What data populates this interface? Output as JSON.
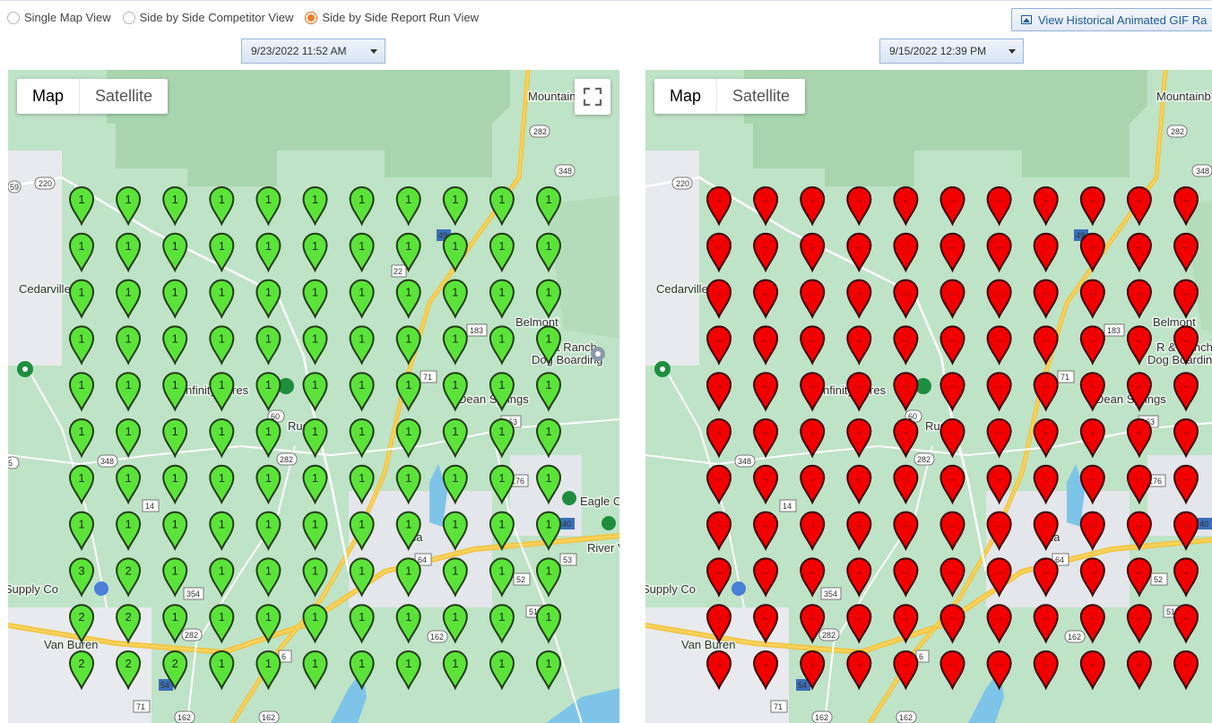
{
  "view_options": [
    {
      "label": "Single Map View",
      "checked": false
    },
    {
      "label": "Side by Side Competitor View",
      "checked": false
    },
    {
      "label": "Side by Side Report Run View",
      "checked": true
    }
  ],
  "gif_button": {
    "label": "View Historical Animated GIF Ra",
    "icon": "image-icon"
  },
  "left_panel": {
    "date": "9/23/2022 11:52 AM",
    "map_type": {
      "map": "Map",
      "satellite": "Satellite",
      "selected": "Map"
    },
    "pin_color": "#5ce33a",
    "pin_stroke": "#1f3d12",
    "pin_rows": [
      [
        "1",
        "1",
        "1",
        "1",
        "1",
        "1",
        "1",
        "1",
        "1",
        "1",
        "1"
      ],
      [
        "1",
        "1",
        "1",
        "1",
        "1",
        "1",
        "1",
        "1",
        "1",
        "1",
        "1"
      ],
      [
        "1",
        "1",
        "1",
        "1",
        "1",
        "1",
        "1",
        "1",
        "1",
        "1",
        "1"
      ],
      [
        "1",
        "1",
        "1",
        "1",
        "1",
        "1",
        "1",
        "1",
        "1",
        "1",
        "1"
      ],
      [
        "1",
        "1",
        "1",
        "1",
        "1",
        "1",
        "1",
        "1",
        "1",
        "1",
        "1"
      ],
      [
        "1",
        "1",
        "1",
        "1",
        "1",
        "1",
        "1",
        "1",
        "1",
        "1",
        "1"
      ],
      [
        "1",
        "1",
        "1",
        "1",
        "1",
        "1",
        "1",
        "1",
        "1",
        "1",
        "1"
      ],
      [
        "1",
        "1",
        "1",
        "1",
        "1",
        "1",
        "1",
        "1",
        "1",
        "1",
        "1"
      ],
      [
        "3",
        "2",
        "1",
        "1",
        "1",
        "1",
        "1",
        "1",
        "1",
        "1",
        "1"
      ],
      [
        "2",
        "2",
        "1",
        "1",
        "1",
        "1",
        "1",
        "1",
        "1",
        "1",
        "1"
      ],
      [
        "2",
        "2",
        "2",
        "1",
        "1",
        "1",
        "1",
        "1",
        "1",
        "1",
        "1"
      ]
    ]
  },
  "right_panel": {
    "date": "9/15/2022 12:39 PM",
    "map_type": {
      "map": "Map",
      "satellite": "Satellite",
      "selected": "Map"
    },
    "pin_color": "#f20000",
    "pin_stroke": "#3a0000",
    "pin_label": "–",
    "pin_rows_count": 11,
    "pin_cols_count": 11
  },
  "map_labels": {
    "places": [
      "Mountainb",
      "Cedarville",
      "Belmont",
      "R & Ranch",
      "Dog Boarding",
      "Rudy",
      "Dean Springs",
      "Eagle C",
      "River V",
      "Supply Co",
      "Van Buren",
      "nfinity Acres",
      "na"
    ],
    "road_shields": [
      "282",
      "348",
      "59",
      "220",
      "49",
      "22",
      "183",
      "71",
      "163",
      "60",
      "348",
      "282",
      "176",
      "14",
      "40",
      "64",
      "53",
      "52",
      "51",
      "354",
      "282",
      "162",
      "6",
      "54",
      "71",
      "162",
      "162",
      "5"
    ]
  },
  "colors": {
    "map_bg": "#bfe3c6",
    "forest": "#a8d5ae",
    "urban": "#e9eaee",
    "highway": "#f7d25c",
    "road": "#ffffff",
    "water": "#7ec4e8",
    "accent_radio": "#f07a22"
  }
}
